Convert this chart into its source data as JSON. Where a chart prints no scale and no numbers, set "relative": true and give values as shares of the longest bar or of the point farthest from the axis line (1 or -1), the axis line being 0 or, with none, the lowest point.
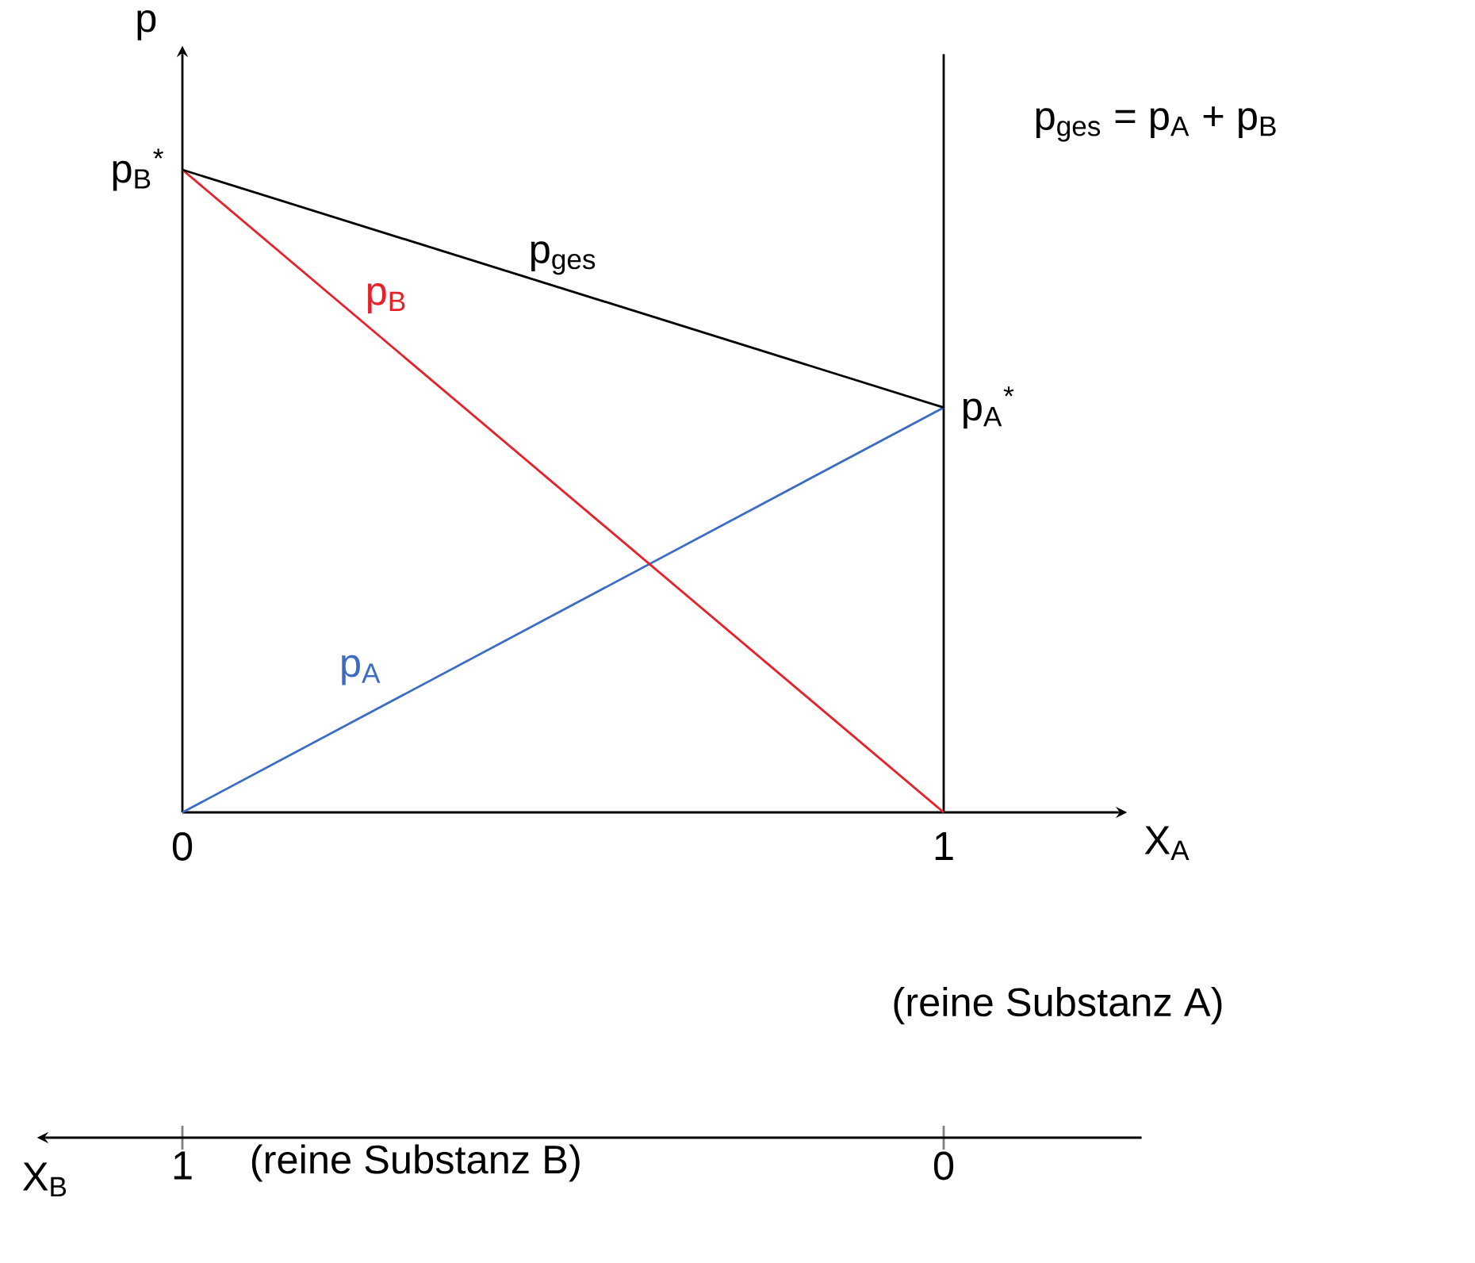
{
  "chart_data": {
    "type": "line",
    "relative": true,
    "ylabel": "p",
    "xlabel": "X$_{A}$",
    "x2label": "X$_{B}$",
    "xlim": [
      0,
      1.23
    ],
    "xticks": [
      0,
      1
    ],
    "x2lim": [
      1.18,
      -0.26
    ],
    "x2ticks": [
      1,
      0
    ],
    "x": [
      0,
      1
    ],
    "series": [
      {
        "name": "p$_{A}$",
        "color": "#3b6cc4",
        "values": [
          0,
          0.63
        ]
      },
      {
        "name": "p$_{B}$",
        "color": "#e8202a",
        "values": [
          1,
          0
        ]
      },
      {
        "name": "p$_{ges}$",
        "color": "#000000",
        "values": [
          1,
          0.63
        ]
      }
    ],
    "ref_lines": [
      {
        "axis": "x",
        "value": 1,
        "color": "#000000"
      }
    ],
    "annotations": [
      {
        "text": "p$_{B}$$^{*}$",
        "x": 0,
        "y": 1
      },
      {
        "text": "p$_{A}$$^{*}$",
        "x": 1,
        "y": 0.63
      },
      "p$_{ges}$ = p$_{A}$ + p$_{B}$",
      "(reine Substanz A)",
      "(reine Substanz B)"
    ]
  }
}
